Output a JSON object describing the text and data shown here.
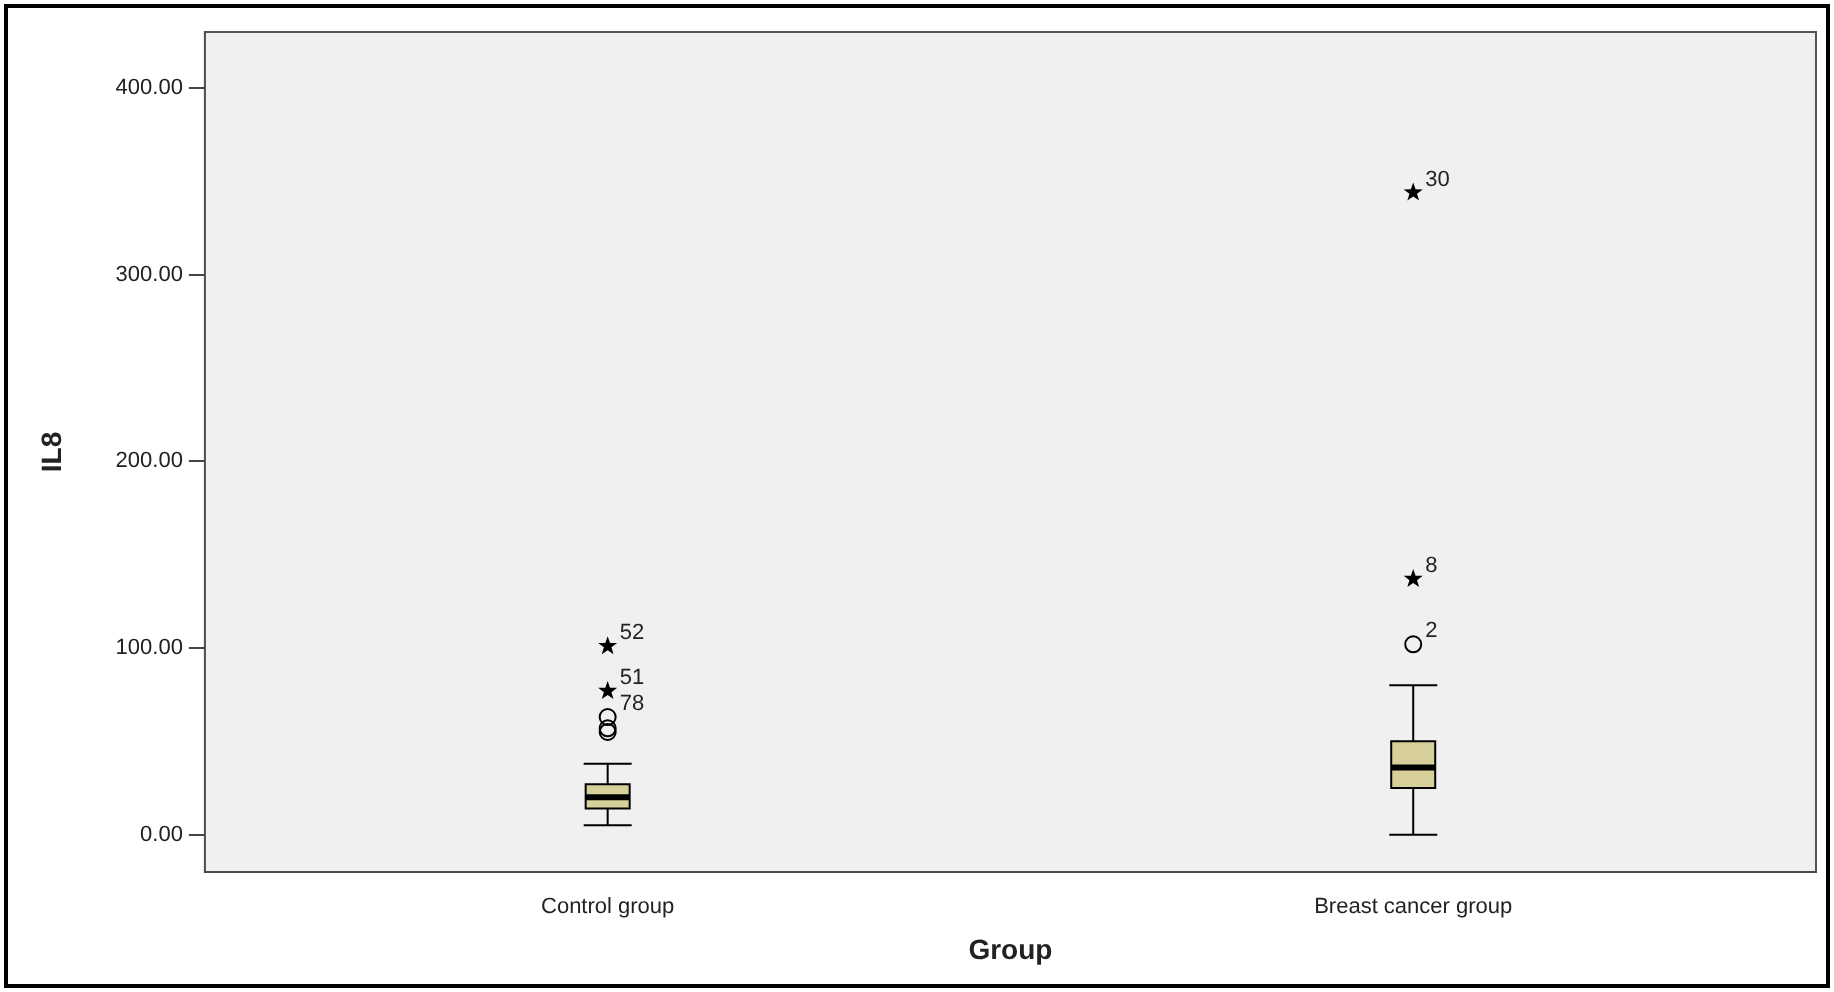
{
  "chart_data": {
    "type": "box",
    "xlabel": "Group",
    "ylabel": "IL8",
    "categories": [
      "Control group",
      "Breast cancer group"
    ],
    "boxes": [
      {
        "low": 5,
        "q1": 14,
        "median": 20,
        "q3": 27,
        "high": 38
      },
      {
        "low": 0,
        "q1": 25,
        "median": 36,
        "q3": 50,
        "high": 80
      }
    ],
    "color": "#d8d09a",
    "series": [
      {
        "type": "scatter",
        "marker": "circle",
        "color": "#000000",
        "x": [
          "Control group",
          "Control group",
          "Control group",
          "Breast cancer group"
        ],
        "values": [
          63,
          57,
          55,
          102
        ]
      },
      {
        "type": "scatter",
        "marker": "star",
        "color": "#000000",
        "x": [
          "Control group",
          "Control group",
          "Breast cancer group",
          "Breast cancer group"
        ],
        "values": [
          77,
          101,
          137,
          344
        ]
      }
    ],
    "annotations": [
      {
        "text": "52",
        "x": "Control group",
        "y": 101
      },
      {
        "text": "51",
        "x": "Control group",
        "y": 77
      },
      {
        "text": "78",
        "x": "Control group",
        "y": 63
      },
      {
        "text": "2",
        "x": "Breast cancer group",
        "y": 102
      },
      {
        "text": "8",
        "x": "Breast cancer group",
        "y": 137
      },
      {
        "text": "30",
        "x": "Breast cancer group",
        "y": 344
      }
    ],
    "ylim": [
      -20,
      430
    ],
    "yticks": [
      {
        "value": 0,
        "label": "0.00"
      },
      {
        "value": 100,
        "label": "100.00"
      },
      {
        "value": 200,
        "label": "200.00"
      },
      {
        "value": 300,
        "label": "300.00"
      },
      {
        "value": 400,
        "label": "400.00"
      }
    ],
    "grid": false,
    "legend": false
  }
}
